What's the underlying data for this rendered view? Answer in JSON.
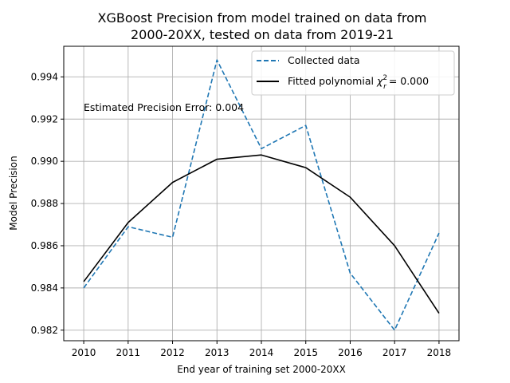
{
  "chart_data": {
    "type": "line",
    "title_line1": "XGBoost Precision from model trained on data from",
    "title_line2": "2000-20XX, tested on data from 2019-21",
    "xlabel": "End year of training set 2000-20XX",
    "ylabel": "Model Precision",
    "x": [
      2010,
      2011,
      2012,
      2013,
      2014,
      2015,
      2016,
      2017,
      2018
    ],
    "xlim": [
      2009.55,
      2018.45
    ],
    "ylim": [
      0.9815,
      0.99545
    ],
    "yticks": [
      0.982,
      0.984,
      0.986,
      0.988,
      0.99,
      0.992,
      0.994
    ],
    "ytick_labels": [
      "0.982",
      "0.984",
      "0.986",
      "0.988",
      "0.990",
      "0.992",
      "0.994"
    ],
    "grid": true,
    "legend_position": "upper-right",
    "series": [
      {
        "name": "Collected data",
        "style": "dashed",
        "color": "#1f77b4",
        "values": [
          0.984,
          0.9869,
          0.9864,
          0.9948,
          0.9906,
          0.9917,
          0.9847,
          0.982,
          0.9866
        ]
      },
      {
        "name": "Fitted polynomial",
        "name_suffix": "= 0.000",
        "style": "solid",
        "color": "#000000",
        "values": [
          0.9843,
          0.9871,
          0.989,
          0.9901,
          0.9903,
          0.9897,
          0.9883,
          0.986,
          0.9828
        ]
      }
    ],
    "annotation": "Estimated Precision Error: 0.004"
  }
}
